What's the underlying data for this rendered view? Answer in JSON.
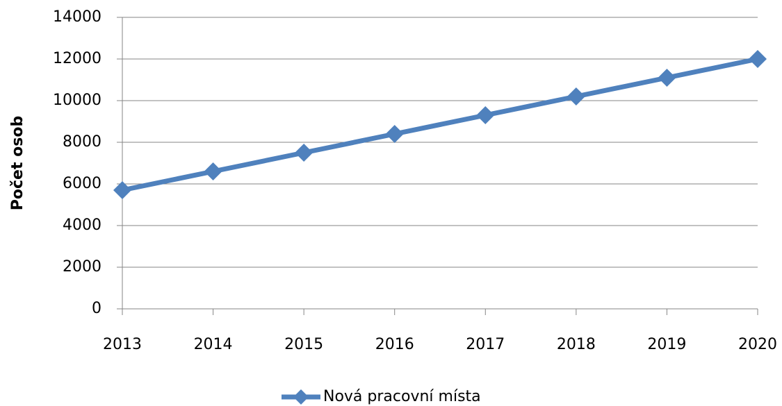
{
  "chart_data": {
    "type": "line",
    "y_label": "Počet osob",
    "x": [
      2013,
      2014,
      2015,
      2016,
      2017,
      2018,
      2019,
      2020
    ],
    "xlim": [
      2013,
      2020
    ],
    "xticks": [
      2013,
      2014,
      2015,
      2016,
      2017,
      2018,
      2019,
      2020
    ],
    "series": [
      {
        "name": "Nová pracovní místa",
        "color": "#4f81bd",
        "values": [
          5700,
          6600,
          7500,
          8400,
          9300,
          10200,
          11100,
          12000
        ]
      }
    ],
    "ylim": [
      0,
      14000
    ],
    "yticks": [
      0,
      2000,
      4000,
      6000,
      8000,
      10000,
      12000,
      14000
    ],
    "grid": true,
    "legend": "bottom"
  }
}
